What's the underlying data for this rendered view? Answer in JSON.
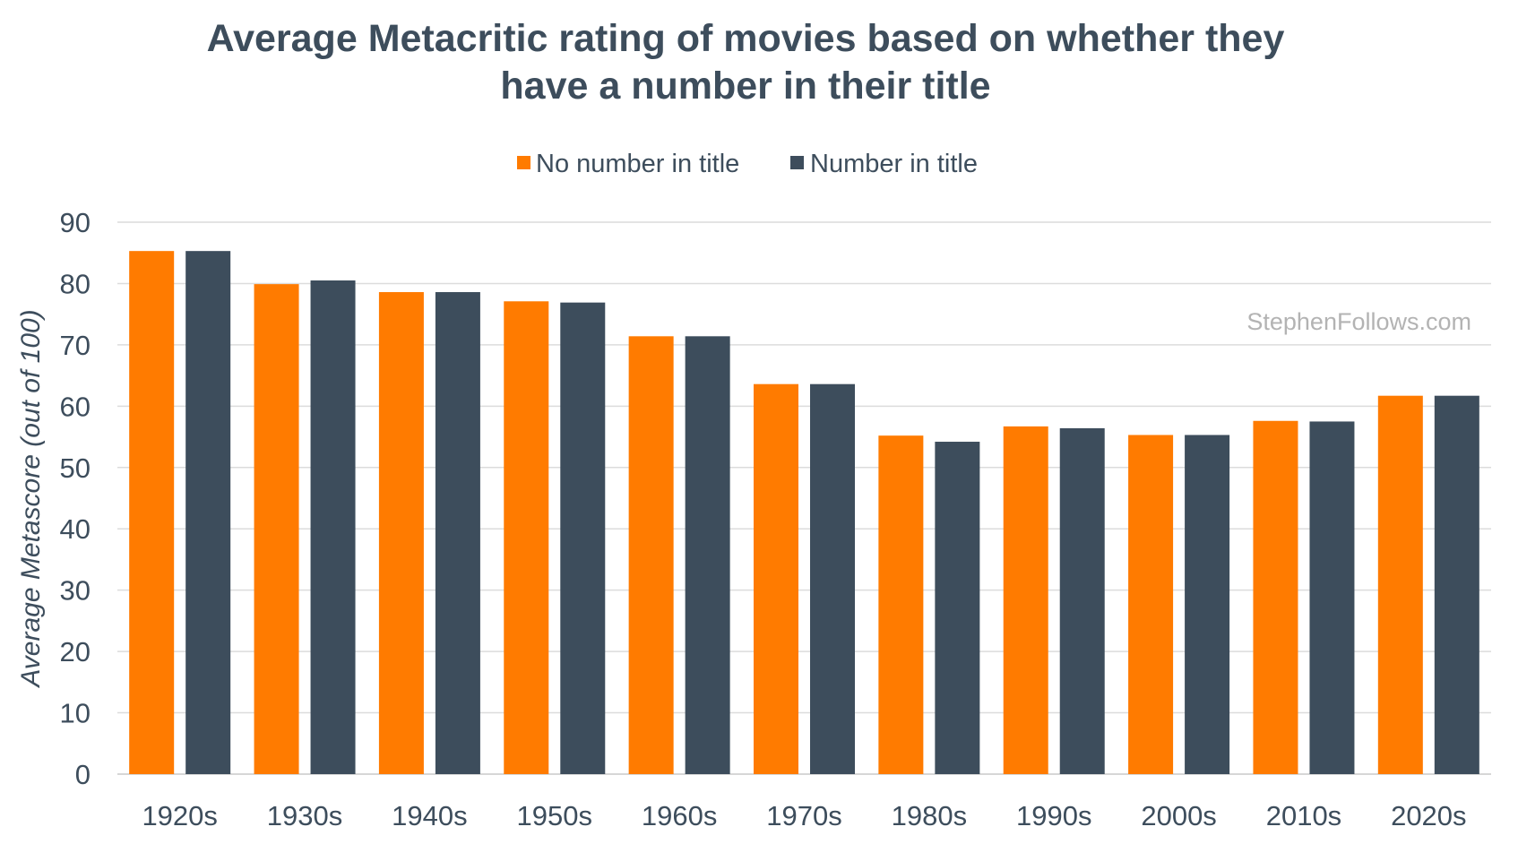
{
  "chart_data": {
    "type": "bar",
    "title_lines": [
      "Average Metacritic rating of movies based on whether they",
      "have a number in their title"
    ],
    "ylabel": "Average Metascore (out of 100)",
    "xlabel": "",
    "ylim": [
      0,
      90
    ],
    "yticks": [
      0,
      10,
      20,
      30,
      40,
      50,
      60,
      70,
      80,
      90
    ],
    "grid": true,
    "legend_position": "top",
    "categories": [
      "1920s",
      "1930s",
      "1940s",
      "1950s",
      "1960s",
      "1970s",
      "1980s",
      "1990s",
      "2000s",
      "2010s",
      "2020s"
    ],
    "series": [
      {
        "name": "No number in title",
        "color": "#ff7b00",
        "values": [
          85.3,
          79.9,
          78.6,
          77.1,
          71.4,
          63.6,
          55.2,
          56.7,
          55.3,
          57.6,
          61.7
        ]
      },
      {
        "name": "Number in title",
        "color": "#3d4d5c",
        "values": [
          85.3,
          80.5,
          78.6,
          76.9,
          71.4,
          63.6,
          54.2,
          56.4,
          55.3,
          57.5,
          61.7
        ]
      }
    ],
    "watermark": "StephenFollows.com"
  }
}
